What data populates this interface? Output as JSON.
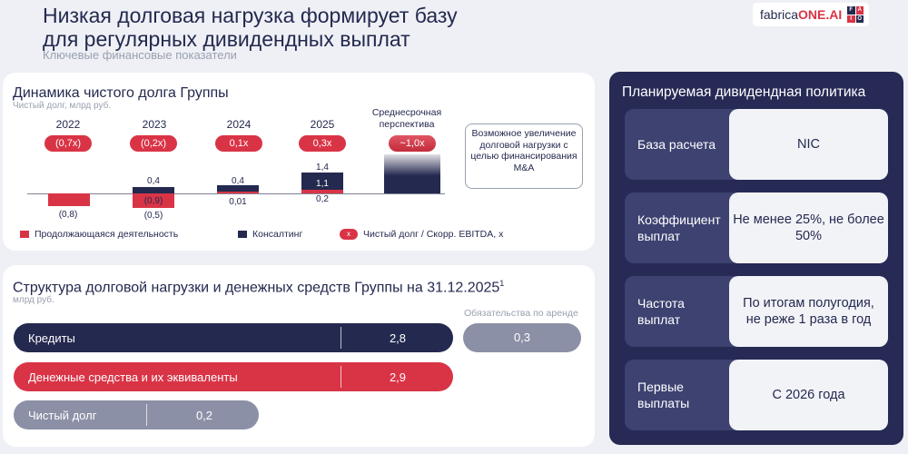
{
  "header": {
    "title_line1": "Низкая долговая нагрузка формирует базу",
    "title_line2": "для регулярных дивидендных выплат",
    "subtitle": "Ключевые финансовые показатели",
    "logo_prefix": "fabrica",
    "logo_brand": "ONE.AI",
    "logo_mark": [
      "F",
      "A",
      "I",
      "O"
    ]
  },
  "debt_chart": {
    "title": "Динамика чистого долга Группы",
    "unit": "Чистый долг, млрд руб.",
    "years": [
      "2022",
      "2023",
      "2024",
      "2025"
    ],
    "perspective_label": "Среднесрочная перспектива",
    "ratios": [
      "(0,7x)",
      "(0,2x)",
      "0,1x",
      "0,3x",
      "~1,0x"
    ],
    "continuing_labels": [
      "(0,8)",
      "(0,9)",
      "0,01",
      "0,2"
    ],
    "consulting_labels": [
      "0,4",
      "0,4",
      "1,1"
    ],
    "total_labels": [
      "(0,5)",
      "1,4"
    ],
    "callout": "Возможное увеличение долговой нагрузки с целью финансирования M&A",
    "legend": {
      "continuing": "Продолжающаяся деятельность",
      "consulting": "Консалтинг",
      "ratio_marker": "x",
      "ratio": "Чистый долг / Скорр. EBITDA, x"
    }
  },
  "chart_data": {
    "type": "bar",
    "title": "Динамика чистого долга Группы",
    "ylabel": "Чистый долг, млрд руб.",
    "categories": [
      "2022",
      "2023",
      "2024",
      "2025"
    ],
    "series": [
      {
        "name": "Продолжающаяся деятельность",
        "values": [
          -0.8,
          -0.9,
          0.01,
          0.2
        ]
      },
      {
        "name": "Консалтинг",
        "values": [
          0,
          0.4,
          0.4,
          1.1
        ]
      }
    ],
    "totals": [
      null,
      -0.5,
      null,
      1.4
    ],
    "ratio_series": {
      "name": "Чистый долг / Скорр. EBITDA, x",
      "values": [
        -0.7,
        -0.2,
        0.1,
        0.3,
        1.0
      ]
    },
    "colors": {
      "continuing": "#d93446",
      "consulting": "#24294f"
    }
  },
  "structure": {
    "title": "Структура долговой нагрузки и денежных средств Группы на 31.12.2025",
    "title_sup": "1",
    "unit": "млрд руб.",
    "rows": [
      {
        "label": "Кредиты",
        "value": "2,8"
      },
      {
        "label": "Денежные средства и их эквиваленты",
        "value": "2,9"
      },
      {
        "label": "Чистый долг",
        "value": "0,2"
      }
    ],
    "lease_header": "Обязательства по аренде",
    "lease_value": "0,3"
  },
  "policy": {
    "title": "Планируемая дивидендная политика",
    "rows": [
      {
        "label": "База расчета",
        "value": "NIC"
      },
      {
        "label": "Коэффициент выплат",
        "value": "Не менее 25%, не более 50%"
      },
      {
        "label": "Частота выплат",
        "value": "По итогам полугодия, не реже 1 раза в год"
      },
      {
        "label": "Первые выплаты",
        "value": "С 2026 года"
      }
    ]
  },
  "colors": {
    "navy": "#24294f",
    "red": "#d93446",
    "grey": "#8b90a6",
    "policy_bg": "#262a55"
  }
}
